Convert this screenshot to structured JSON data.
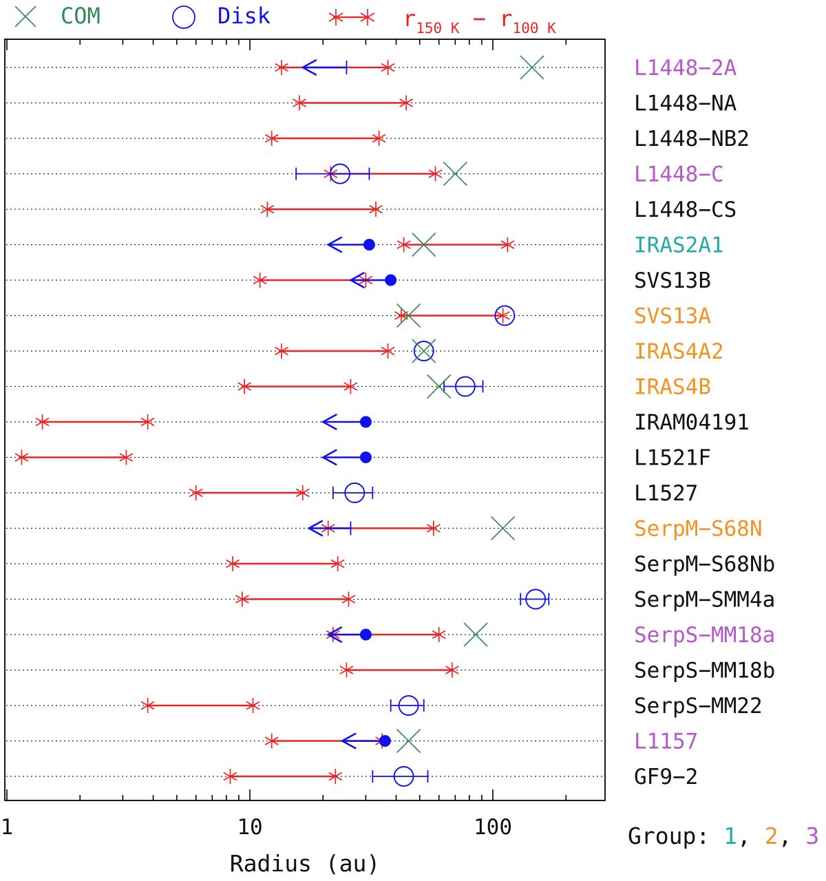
{
  "chart_data": {
    "type": "scatter",
    "xscale": "log",
    "xlim": [
      1,
      300
    ],
    "xlabel": "Radius (au)",
    "xticks": [
      {
        "value": 1,
        "label": "1"
      },
      {
        "value": 10,
        "label": "10"
      },
      {
        "value": 100,
        "label": "100"
      }
    ],
    "legend": {
      "com": "COM",
      "disk": "Disk",
      "range_main": "r",
      "range_sub1": "150 K",
      "range_dash": " − ",
      "range_sub2": "100 K"
    },
    "group_note": {
      "prefix": "Group: ",
      "g1": "1",
      "g2": "2",
      "g3": "3",
      "sep": ", "
    },
    "colors": {
      "g1": "#22aaaa",
      "g2": "#f39220",
      "g3": "#b658c9",
      "none": "#111111",
      "range": "#ee2222",
      "disk": "#1111ee",
      "com": "#2e8b57"
    },
    "sources": [
      {
        "name": "L1448−2A",
        "group": 3,
        "r150": 13.5,
        "r100": 37,
        "disk": {
          "upper": 25,
          "arrow_to": 16.5
        },
        "com": 145
      },
      {
        "name": "L1448−NA",
        "group": 0,
        "r150": 16,
        "r100": 44
      },
      {
        "name": "L1448−NB2",
        "group": 0,
        "r150": 12.3,
        "r100": 34
      },
      {
        "name": "L1448−C",
        "group": 3,
        "r150": 21.5,
        "r100": 58,
        "disk": {
          "value": 23.5,
          "err": [
            15.5,
            31
          ],
          "marker": "open"
        },
        "com": 70
      },
      {
        "name": "L1448−CS",
        "group": 0,
        "r150": 11.8,
        "r100": 33
      },
      {
        "name": "IRAS2A1",
        "group": 1,
        "r150": 43,
        "r100": 115,
        "disk": {
          "upper": 31,
          "arrow_to": 21,
          "marker": "filled"
        },
        "com": 52
      },
      {
        "name": "SVS13B",
        "group": 0,
        "r150": 11,
        "r100": 30,
        "disk": {
          "upper": 38,
          "arrow_to": 26,
          "marker": "filled"
        }
      },
      {
        "name": "SVS13A",
        "group": 2,
        "r150": 42,
        "r100": 110,
        "disk": {
          "value": 112,
          "marker": "open"
        },
        "com": 45
      },
      {
        "name": "IRAS4A2",
        "group": 2,
        "r150": 13.5,
        "r100": 37,
        "disk": {
          "value": 52,
          "marker": "open"
        },
        "com": 52
      },
      {
        "name": "IRAS4B",
        "group": 2,
        "r150": 9.5,
        "r100": 26,
        "disk": {
          "value": 77,
          "err": [
            63,
            91
          ],
          "marker": "open"
        },
        "com": 60
      },
      {
        "name": "IRAM04191",
        "group": 0,
        "r150": 1.4,
        "r100": 3.8,
        "disk": {
          "upper": 30,
          "arrow_to": 20,
          "marker": "filled"
        }
      },
      {
        "name": "L1521F",
        "group": 0,
        "r150": 1.15,
        "r100": 3.1,
        "disk": {
          "upper": 30,
          "arrow_to": 20,
          "marker": "filled"
        }
      },
      {
        "name": "L1527",
        "group": 0,
        "r150": 6,
        "r100": 16.5,
        "disk": {
          "value": 27,
          "err": [
            22,
            32
          ],
          "marker": "open"
        }
      },
      {
        "name": "SerpM−S68N",
        "group": 2,
        "r150": 21,
        "r100": 57,
        "disk": {
          "upper": 26,
          "arrow_to": 17.5
        },
        "com": 110
      },
      {
        "name": "SerpM−S68Nb",
        "group": 0,
        "r150": 8.5,
        "r100": 23
      },
      {
        "name": "SerpM−SMM4a",
        "group": 0,
        "r150": 9.3,
        "r100": 25.5,
        "disk": {
          "value": 150,
          "err": [
            130,
            170
          ],
          "marker": "open"
        }
      },
      {
        "name": "SerpS−MM18a",
        "group": 3,
        "r150": 22,
        "r100": 60,
        "disk": {
          "upper": 30,
          "arrow_to": 21,
          "marker": "filled"
        },
        "com": 85
      },
      {
        "name": "SerpS−MM18b",
        "group": 0,
        "r150": 25,
        "r100": 68
      },
      {
        "name": "SerpS−MM22",
        "group": 0,
        "r150": 3.8,
        "r100": 10.3,
        "disk": {
          "value": 45,
          "err": [
            38,
            52
          ],
          "marker": "open"
        }
      },
      {
        "name": "L1157",
        "group": 3,
        "r150": 12.3,
        "r100": 35,
        "disk": {
          "upper": 36,
          "arrow_to": 24,
          "marker": "filled"
        },
        "com": 45
      },
      {
        "name": "GF9−2",
        "group": 0,
        "r150": 8.3,
        "r100": 22.5,
        "disk": {
          "value": 43,
          "err": [
            32,
            54
          ],
          "marker": "open"
        }
      }
    ]
  }
}
